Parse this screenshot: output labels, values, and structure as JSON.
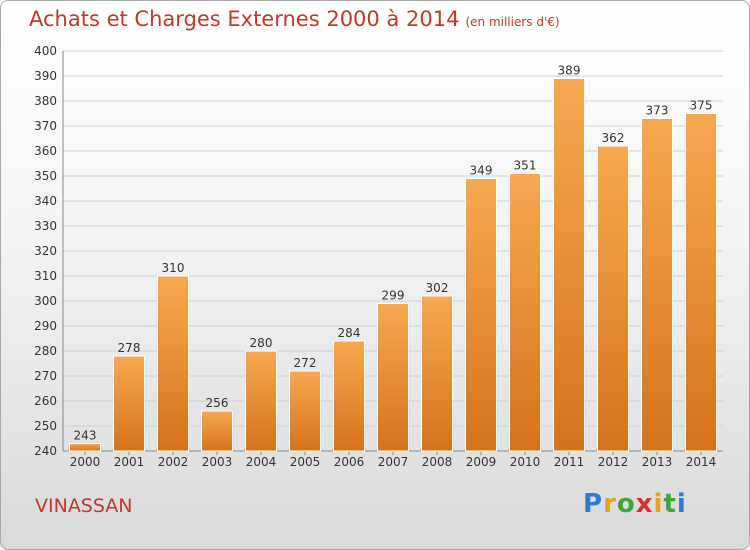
{
  "header": {
    "title": "Achats et Charges Externes 2000 à 2014",
    "subtitle": "(en milliers d'€)"
  },
  "footer": {
    "city": "VINASSAN",
    "brand_letters": [
      "P",
      "r",
      "o",
      "x",
      "i",
      "t",
      "i"
    ],
    "brand_colors": [
      "#2e7bcf",
      "#e8a319",
      "#3aa83a",
      "#d9302b",
      "#e8a319",
      "#3aa83a",
      "#2e7bcf"
    ]
  },
  "colors": {
    "accent": "#c0392b",
    "bar_top": "#f7a94f",
    "bar_bottom": "#d5731c",
    "grid": "#d0d0d0",
    "axis_text": "#333333"
  },
  "chart_data": {
    "type": "bar",
    "categories": [
      "2000",
      "2001",
      "2002",
      "2003",
      "2004",
      "2005",
      "2006",
      "2007",
      "2008",
      "2009",
      "2010",
      "2011",
      "2012",
      "2013",
      "2014"
    ],
    "values": [
      243,
      278,
      310,
      256,
      280,
      272,
      284,
      299,
      302,
      349,
      351,
      389,
      362,
      373,
      375
    ],
    "title": "Achats et Charges Externes 2000 à 2014",
    "ylim": [
      240,
      400
    ],
    "y_ticks": [
      240,
      250,
      260,
      270,
      280,
      290,
      300,
      310,
      320,
      330,
      340,
      350,
      360,
      370,
      380,
      390,
      400
    ],
    "grid": true,
    "data_labels": true
  }
}
